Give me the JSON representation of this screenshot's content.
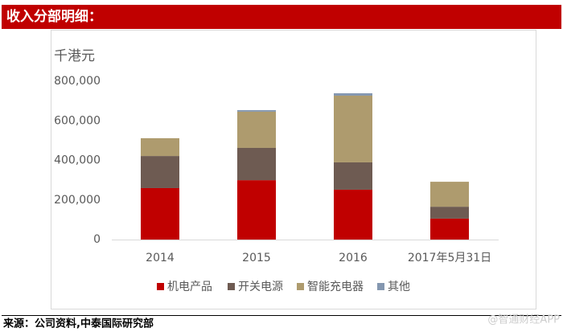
{
  "header": {
    "title": "收入分部明细："
  },
  "chart_data": {
    "type": "stacked_bar",
    "y_label": "千港元",
    "categories": [
      "2014",
      "2015",
      "2016",
      "2017年5月31日"
    ],
    "series": [
      {
        "name": "机电产品",
        "color": "#c00000",
        "values": [
          260000,
          300000,
          252000,
          106000
        ]
      },
      {
        "name": "开关电源",
        "color": "#6e5b52",
        "values": [
          162000,
          163000,
          138000,
          60000
        ]
      },
      {
        "name": "智能充电器",
        "color": "#ae9b6e",
        "values": [
          90000,
          183000,
          337000,
          126000
        ]
      },
      {
        "name": "其他",
        "color": "#8497b0",
        "values": [
          0,
          8000,
          12000,
          0
        ]
      }
    ],
    "ylim": [
      0,
      800000
    ],
    "yticks": [
      0,
      {
        "value": 200000,
        "label": "200,000"
      },
      {
        "value": 400000,
        "label": "400,000"
      },
      {
        "value": 600000,
        "label": "600,000"
      },
      {
        "value": 800000,
        "label": "800,000"
      }
    ],
    "grid": false,
    "legend": "bottom"
  },
  "source": "来源：公司资料,中泰国际研究部",
  "watermark": "@智通财经APP"
}
